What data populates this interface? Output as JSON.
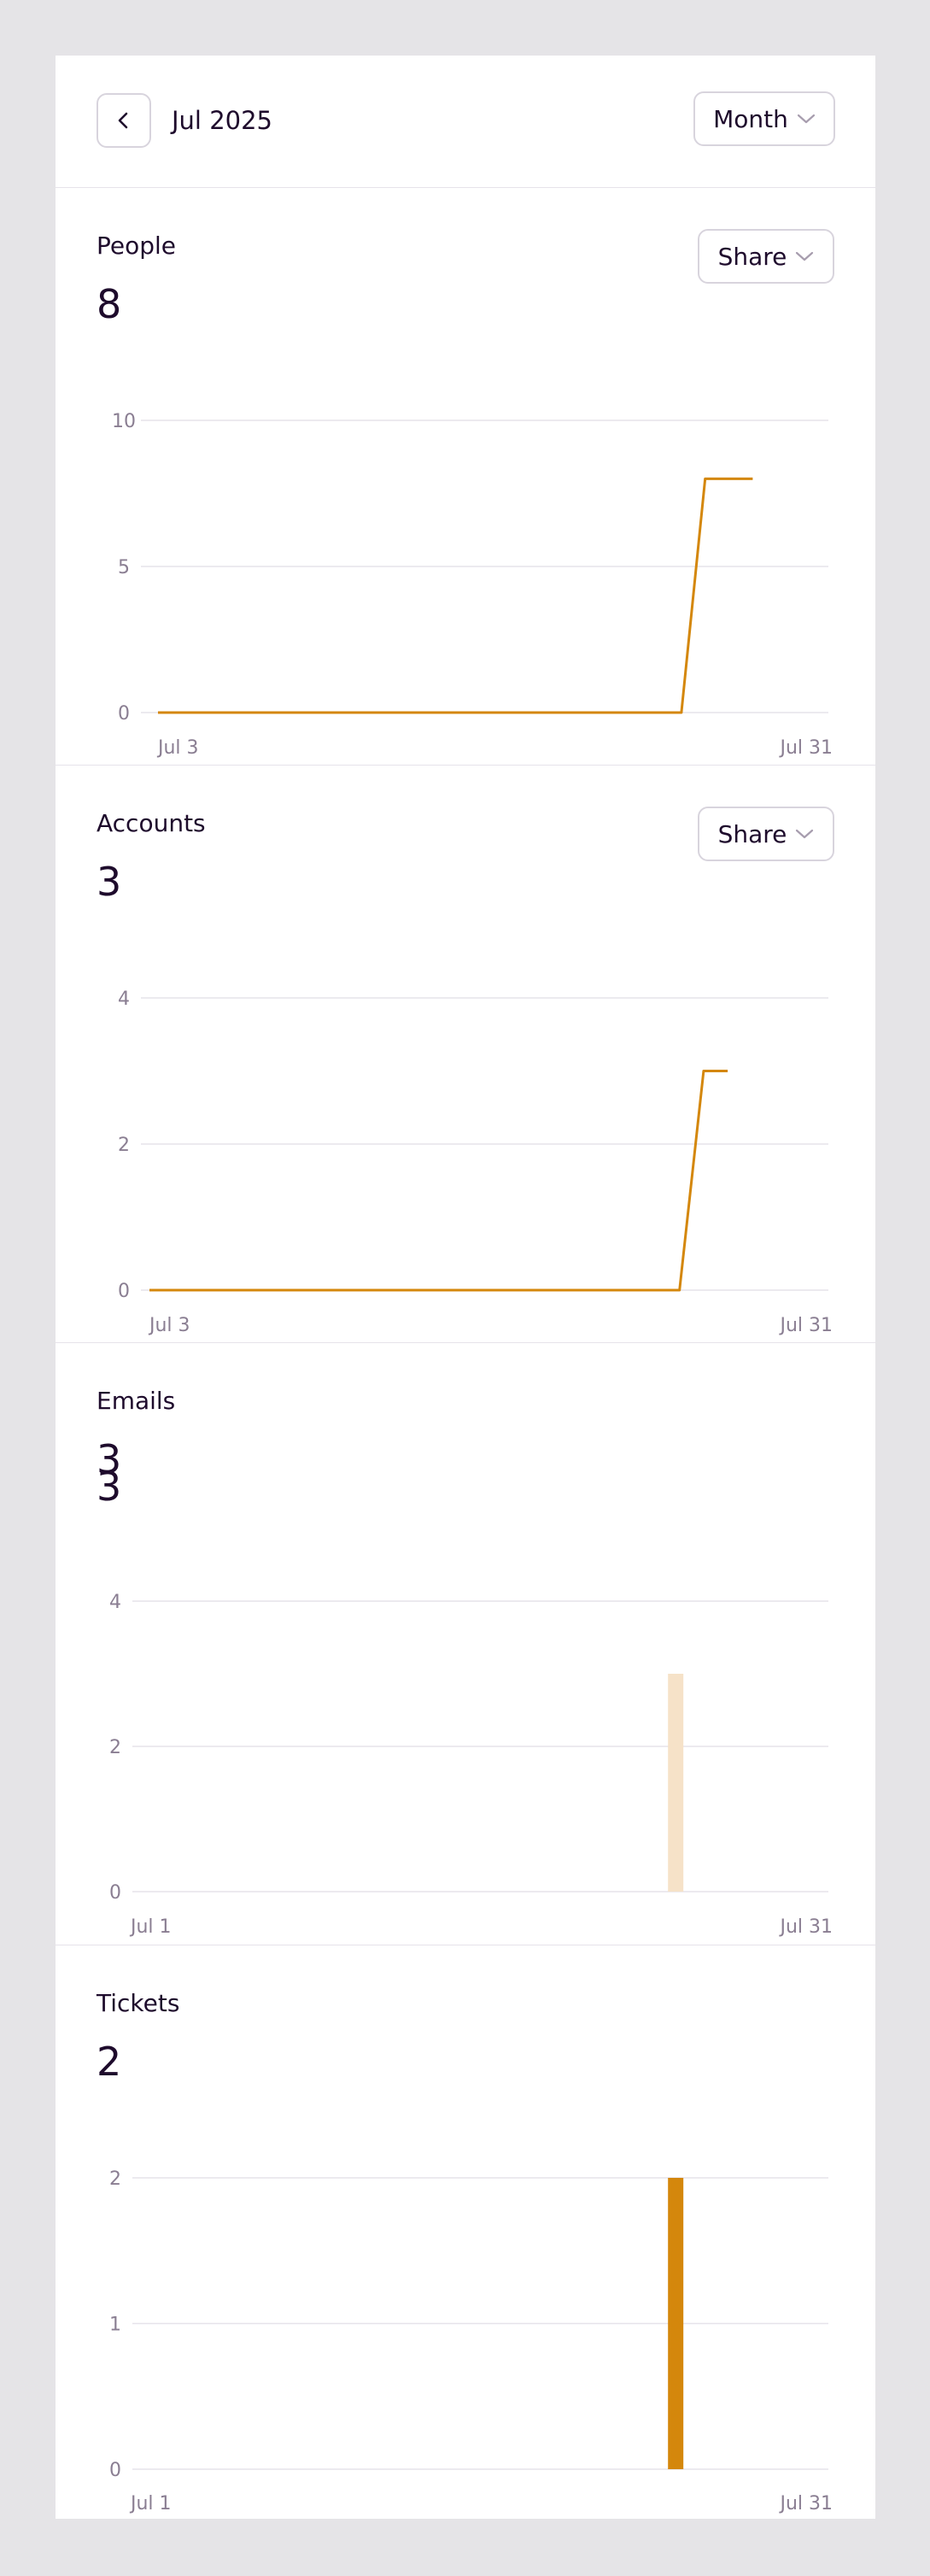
{
  "header": {
    "back_icon": "chevron-left-icon",
    "period_label": "Jul 2025",
    "range_select": "Month",
    "chevron_icon": "chevron-down-icon"
  },
  "colors": {
    "accent": "#d4870c",
    "accent_light": "#f6e2c8",
    "grid": "#e6e3ea",
    "text": "#1e0b2c",
    "tick": "#8a7e92",
    "background": "#e5e4e7"
  },
  "sections": [
    {
      "title": "People",
      "value": "8",
      "share_label": "Share"
    },
    {
      "title": "Accounts",
      "value": "3",
      "share_label": "Share"
    },
    {
      "title": "Emails",
      "value": "3",
      "value_overlap": "3"
    },
    {
      "title": "Tickets",
      "value": "2"
    }
  ],
  "chart_data": [
    {
      "type": "line",
      "title": "People",
      "x": [
        "Jul 3",
        "Jul 4",
        "Jul 5",
        "Jul 6",
        "Jul 7",
        "Jul 8",
        "Jul 9",
        "Jul 10",
        "Jul 11",
        "Jul 12",
        "Jul 13",
        "Jul 14",
        "Jul 15",
        "Jul 16",
        "Jul 17",
        "Jul 18",
        "Jul 19",
        "Jul 20",
        "Jul 21",
        "Jul 22",
        "Jul 23",
        "Jul 24",
        "Jul 25",
        "Jul 26",
        "Jul 27",
        "Jul 28"
      ],
      "values": [
        0,
        0,
        0,
        0,
        0,
        0,
        0,
        0,
        0,
        0,
        0,
        0,
        0,
        0,
        0,
        0,
        0,
        0,
        0,
        0,
        0,
        0,
        0,
        8,
        8,
        8
      ],
      "x_tick_labels": [
        "Jul 3",
        "Jul 31"
      ],
      "y_ticks": [
        0,
        5,
        10
      ],
      "ylim": [
        0,
        10
      ],
      "grid": true
    },
    {
      "type": "line",
      "title": "Accounts",
      "x": [
        "Jul 3",
        "Jul 4",
        "Jul 5",
        "Jul 6",
        "Jul 7",
        "Jul 8",
        "Jul 9",
        "Jul 10",
        "Jul 11",
        "Jul 12",
        "Jul 13",
        "Jul 14",
        "Jul 15",
        "Jul 16",
        "Jul 17",
        "Jul 18",
        "Jul 19",
        "Jul 20",
        "Jul 21",
        "Jul 22",
        "Jul 23",
        "Jul 24",
        "Jul 25",
        "Jul 26",
        "Jul 27"
      ],
      "values": [
        0,
        0,
        0,
        0,
        0,
        0,
        0,
        0,
        0,
        0,
        0,
        0,
        0,
        0,
        0,
        0,
        0,
        0,
        0,
        0,
        0,
        0,
        0,
        3,
        3
      ],
      "x_tick_labels": [
        "Jul 3",
        "Jul 31"
      ],
      "y_ticks": [
        0,
        2,
        4
      ],
      "ylim": [
        0,
        4
      ],
      "grid": true
    },
    {
      "type": "bar",
      "title": "Emails",
      "x_range": [
        1,
        31
      ],
      "bars": [
        {
          "day": 24,
          "value": 3
        }
      ],
      "x_tick_labels": [
        "Jul 1",
        "Jul 31"
      ],
      "y_ticks": [
        0,
        2,
        4
      ],
      "ylim": [
        0,
        4
      ],
      "grid": true
    },
    {
      "type": "bar",
      "title": "Tickets",
      "x_range": [
        1,
        31
      ],
      "bars": [
        {
          "day": 24,
          "value": 2
        }
      ],
      "x_tick_labels": [
        "Jul 1",
        "Jul 31"
      ],
      "y_ticks": [
        0,
        1,
        2
      ],
      "ylim": [
        0,
        2
      ],
      "grid": true
    }
  ]
}
